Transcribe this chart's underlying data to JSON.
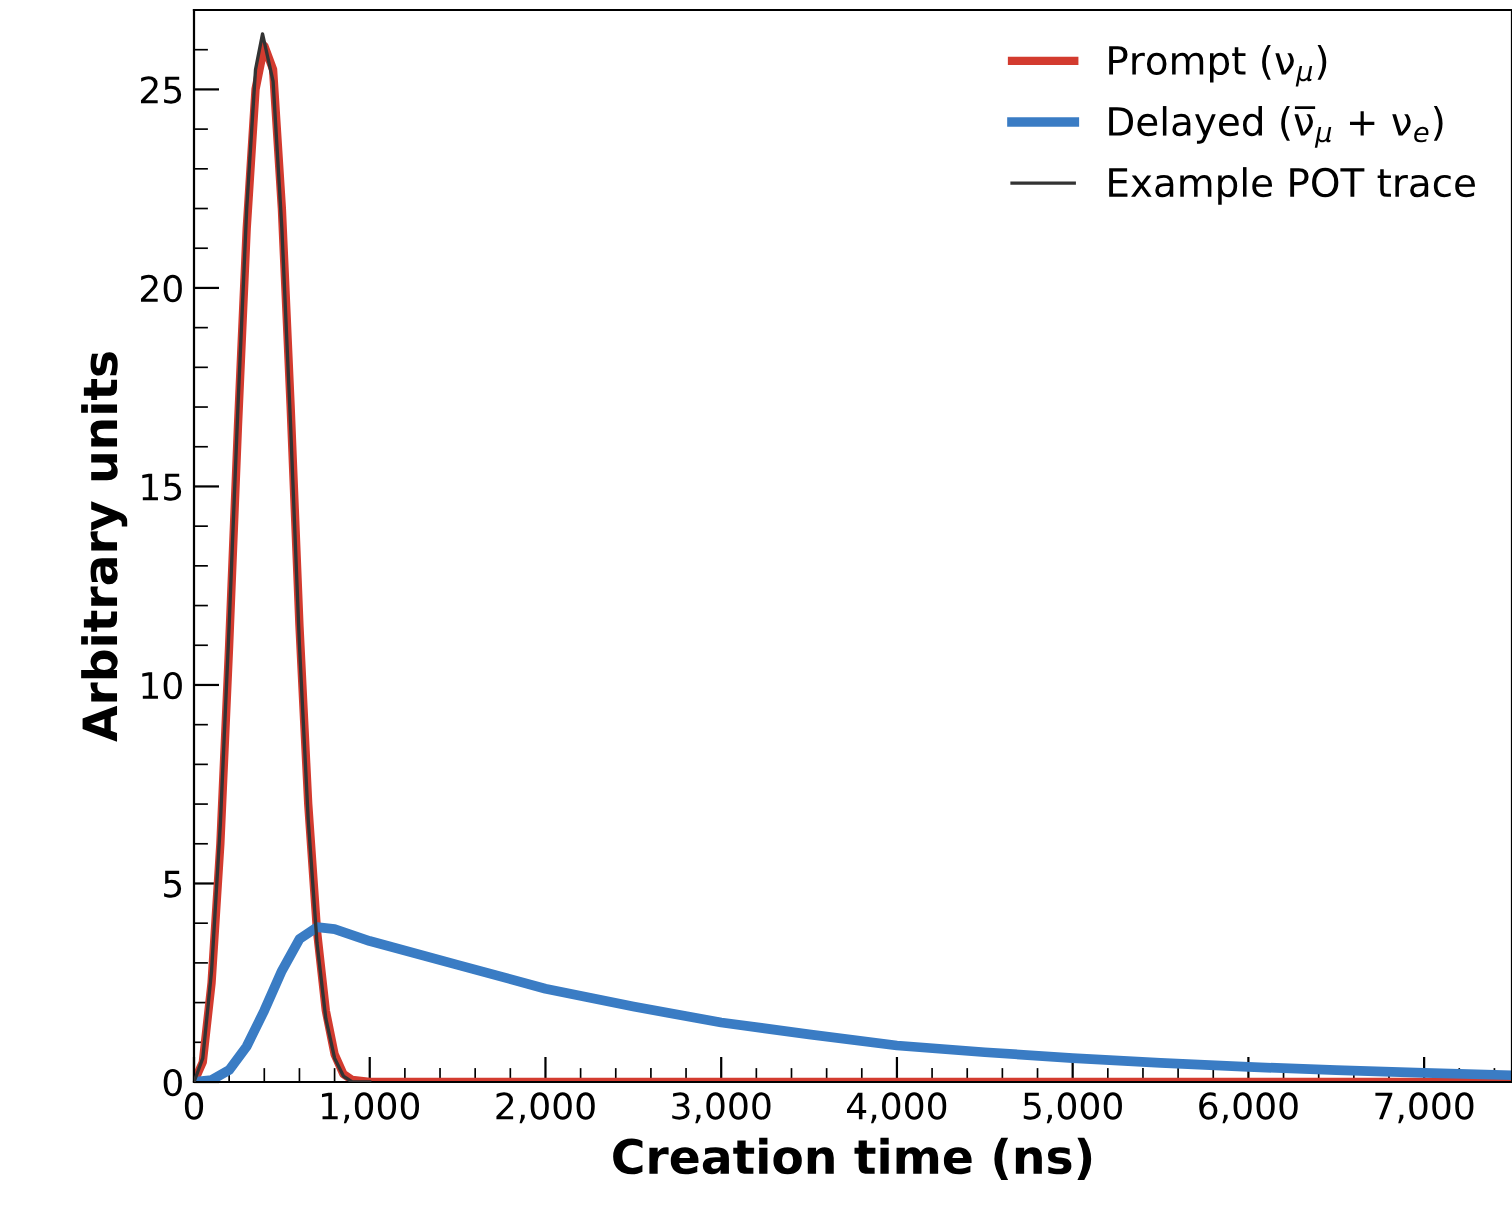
{
  "chart_data": {
    "type": "line",
    "xlabel": "Creation time (ns)",
    "ylabel": "Arbitrary units",
    "xlim": [
      0,
      7500
    ],
    "ylim": [
      0,
      27
    ],
    "xticks": [
      0,
      {
        "value": 1000,
        "label": "1,000"
      },
      {
        "value": 2000,
        "label": "2,000"
      },
      {
        "value": 3000,
        "label": "3,000"
      },
      {
        "value": 4000,
        "label": "4,000"
      },
      {
        "value": 5000,
        "label": "5,000"
      },
      {
        "value": 6000,
        "label": "6,000"
      },
      {
        "value": 7000,
        "label": "7,000"
      }
    ],
    "yticks": [
      0,
      5,
      10,
      15,
      20,
      25
    ],
    "grid": false,
    "legend": "top right",
    "marker": "none",
    "line_style": "solid",
    "series": [
      {
        "name": "Prompt (ν$_{μ}$)",
        "color": "#d33b2f",
        "x": [
          0,
          50,
          100,
          150,
          200,
          250,
          300,
          350,
          400,
          450,
          500,
          550,
          600,
          650,
          700,
          750,
          800,
          850,
          900,
          1000,
          7500
        ],
        "values": [
          0,
          0.5,
          2.5,
          6,
          11,
          16.5,
          21.5,
          25,
          26.1,
          25.5,
          22,
          17,
          11.5,
          7,
          3.8,
          1.8,
          0.7,
          0.2,
          0.05,
          0,
          0
        ]
      },
      {
        "name": "Delayed (ν̅$_{μ}$ + ν$_{e}$)",
        "color": "#3a7cc4",
        "x": [
          0,
          100,
          200,
          300,
          400,
          500,
          600,
          700,
          800,
          1000,
          1500,
          2000,
          2500,
          3000,
          3500,
          4000,
          4500,
          5000,
          5500,
          6000,
          6500,
          7000,
          7500
        ],
        "values": [
          0,
          0.05,
          0.3,
          0.9,
          1.8,
          2.8,
          3.6,
          3.9,
          3.85,
          3.55,
          2.95,
          2.35,
          1.9,
          1.5,
          1.2,
          0.92,
          0.75,
          0.6,
          0.48,
          0.38,
          0.3,
          0.23,
          0.17
        ]
      },
      {
        "name": "Example POT trace",
        "color": "#333333",
        "x": [
          0,
          50,
          100,
          150,
          200,
          250,
          300,
          350,
          390,
          450,
          500,
          550,
          600,
          650,
          700,
          750,
          800,
          850,
          900,
          1000
        ],
        "values": [
          0,
          0.6,
          2.8,
          6.5,
          11.5,
          17,
          22,
          25.5,
          26.4,
          25.2,
          21.5,
          16.5,
          11,
          6.6,
          3.5,
          1.6,
          0.6,
          0.15,
          0,
          0
        ]
      }
    ]
  }
}
